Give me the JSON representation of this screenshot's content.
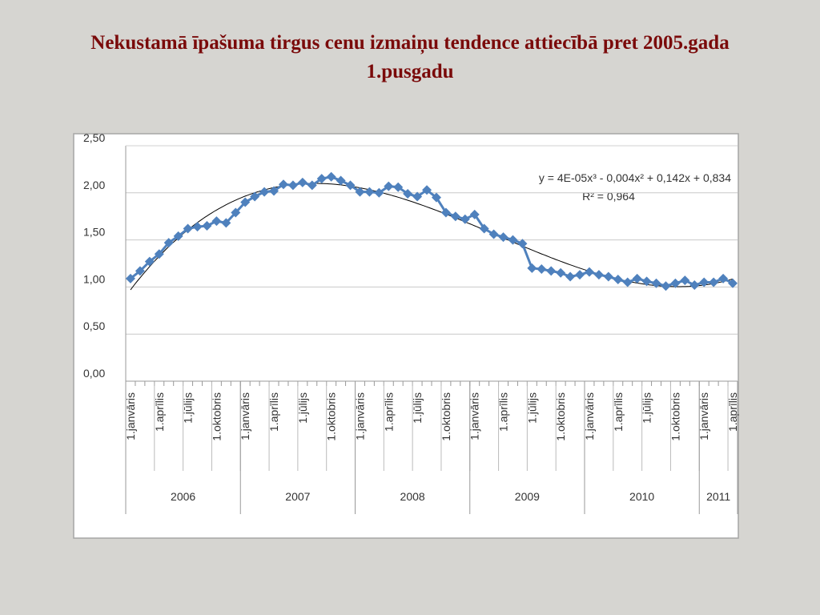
{
  "chart_data": {
    "type": "line",
    "title": "Nekustamā īpašuma tirgus cenu izmaiņu tendence attiecībā pret 2005.gada 1.pusgadu",
    "categories": [
      "1.janvāris",
      null,
      null,
      "1.aprīlis",
      null,
      null,
      "1.jūlijs",
      null,
      null,
      "1.oktobris",
      null,
      null,
      "1.janvāris",
      null,
      null,
      "1.aprīlis",
      null,
      null,
      "1.jūlijs",
      null,
      null,
      "1.oktobris",
      null,
      null,
      "1.janvāris",
      null,
      null,
      "1.aprīlis",
      null,
      null,
      "1.jūlijs",
      null,
      null,
      "1.oktobris",
      null,
      null,
      "1.janvāris",
      null,
      null,
      "1.aprīlis",
      null,
      null,
      "1.jūlijs",
      null,
      null,
      "1.oktobris",
      null,
      null,
      "1.janvāris",
      null,
      null,
      "1.aprīlis",
      null,
      null,
      "1.jūlijs",
      null,
      null,
      "1.oktobris",
      null,
      null,
      "1.janvāris",
      null,
      null,
      "1.aprīlis"
    ],
    "x_groups": [
      "2006",
      "2007",
      "2008",
      "2009",
      "2010",
      "2011"
    ],
    "series": [
      {
        "color": "#4f81bd",
        "values": [
          1.09,
          1.17,
          1.27,
          1.35,
          1.47,
          1.54,
          1.62,
          1.64,
          1.65,
          1.7,
          1.68,
          1.79,
          1.9,
          1.96,
          2.01,
          2.02,
          2.09,
          2.08,
          2.11,
          2.08,
          2.15,
          2.17,
          2.13,
          2.08,
          2.01,
          2.01,
          2.0,
          2.07,
          2.06,
          1.99,
          1.96,
          2.03,
          1.95,
          1.79,
          1.75,
          1.72,
          1.77,
          1.62,
          1.56,
          1.53,
          1.5,
          1.46,
          1.2,
          1.19,
          1.17,
          1.15,
          1.11,
          1.13,
          1.16,
          1.13,
          1.11,
          1.08,
          1.05,
          1.09,
          1.06,
          1.04,
          1.01,
          1.04,
          1.07,
          1.02,
          1.05,
          1.05,
          1.09,
          1.04
        ]
      }
    ],
    "trendline": {
      "degree": 3,
      "equation": "y = 4E-05x³ - 0,004x² + 0,142x + 0,834",
      "r_squared": "R² = 0,964"
    },
    "ylim": [
      0,
      2.5
    ],
    "yticks": [
      {
        "value": 0,
        "label": "0,00"
      },
      {
        "value": 0.5,
        "label": "0,50"
      },
      {
        "value": 1,
        "label": "1,00"
      },
      {
        "value": 1.5,
        "label": "1,50"
      },
      {
        "value": 2,
        "label": "2,00"
      },
      {
        "value": 2.5,
        "label": "2,50"
      }
    ],
    "grid": true
  }
}
